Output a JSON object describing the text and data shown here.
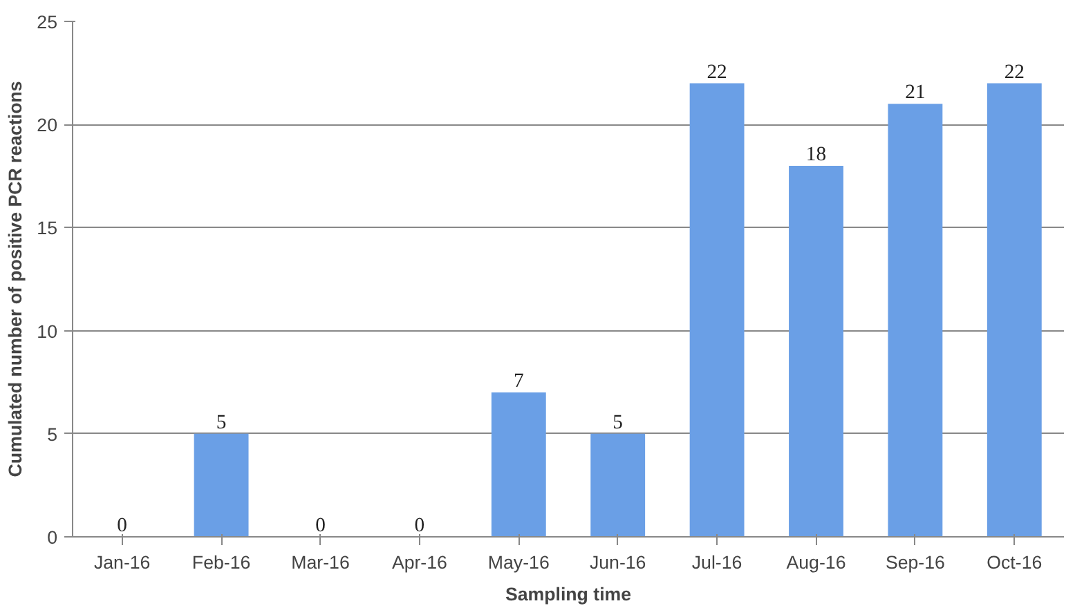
{
  "chart_data": {
    "type": "bar",
    "categories": [
      "Jan-16",
      "Feb-16",
      "Mar-16",
      "Apr-16",
      "May-16",
      "Jun-16",
      "Jul-16",
      "Aug-16",
      "Sep-16",
      "Oct-16"
    ],
    "values": [
      0,
      5,
      0,
      0,
      7,
      5,
      22,
      18,
      21,
      22
    ],
    "color": "#6a9fe6",
    "xlabel": "Sampling time",
    "ylabel": "Cumulated number of positive PCR reactions",
    "ylim": [
      0,
      25
    ],
    "yticks": [
      0,
      5,
      10,
      15,
      20,
      25
    ],
    "grid": "y",
    "data_labels": true
  }
}
